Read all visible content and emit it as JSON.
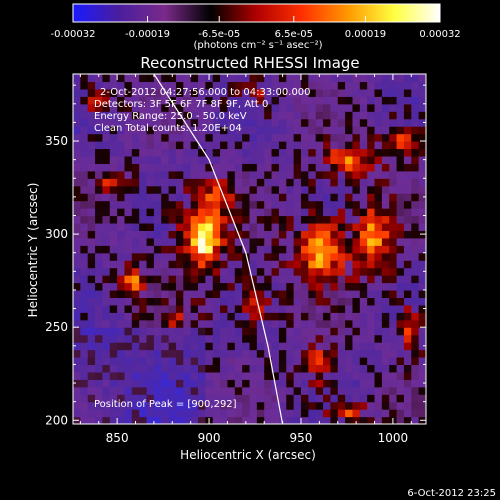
{
  "chart_data": {
    "type": "heatmap",
    "title": "Reconstructed RHESSI Image",
    "xlabel": "Heliocentric X (arcsec)",
    "ylabel": "Heliocentric Y (arcsec)",
    "xlim": [
      826,
      1018
    ],
    "ylim": [
      198,
      386
    ],
    "x_ticks": [
      850,
      900,
      950,
      1000
    ],
    "y_ticks": [
      200,
      250,
      300,
      350
    ],
    "colorbar": {
      "label": "(photons cm⁻² s⁻¹ asec⁻²)",
      "ticks": [
        "-0.00032",
        "-0.00019",
        "-6.5e-05",
        "6.5e-05",
        "0.00019",
        "0.00032"
      ],
      "range": [
        -0.00032,
        0.00032
      ],
      "colors": [
        "#1a1aff",
        "#4a1e9e",
        "#7a2a8a",
        "#000000",
        "#b00000",
        "#ff3000",
        "#ff9900",
        "#ffff40",
        "#ffffff"
      ]
    },
    "annotations": [
      "2-Oct-2012 04:27:56.000 to 04:33:00.000",
      "Detectors: 3F 5F 6F 7F 8F 9F, Att 0",
      "Energy Range: 25.0 - 50.0 keV",
      "Clean    Total counts: 1.20E+04"
    ],
    "peak_label": "Position of Peak = [900,292]",
    "peak_position": [
      900,
      292
    ],
    "limb_curve": [
      [
        870,
        386
      ],
      [
        900,
        340
      ],
      [
        920,
        290
      ],
      [
        932,
        240
      ],
      [
        940,
        198
      ]
    ],
    "blobs": [
      {
        "x": 897,
        "y": 298,
        "sx": 14,
        "sy": 22,
        "amp": 1.0
      },
      {
        "x": 905,
        "y": 320,
        "sx": 10,
        "sy": 10,
        "amp": 0.55
      },
      {
        "x": 858,
        "y": 275,
        "sx": 9,
        "sy": 9,
        "amp": 0.75
      },
      {
        "x": 848,
        "y": 328,
        "sx": 9,
        "sy": 8,
        "amp": 0.6
      },
      {
        "x": 960,
        "y": 290,
        "sx": 18,
        "sy": 22,
        "amp": 0.75
      },
      {
        "x": 990,
        "y": 300,
        "sx": 14,
        "sy": 20,
        "amp": 0.7
      },
      {
        "x": 975,
        "y": 340,
        "sx": 18,
        "sy": 10,
        "amp": 0.65
      },
      {
        "x": 960,
        "y": 230,
        "sx": 10,
        "sy": 14,
        "amp": 0.55
      },
      {
        "x": 975,
        "y": 205,
        "sx": 14,
        "sy": 6,
        "amp": 0.55
      },
      {
        "x": 1010,
        "y": 250,
        "sx": 8,
        "sy": 16,
        "amp": 0.55
      },
      {
        "x": 880,
        "y": 255,
        "sx": 12,
        "sy": 8,
        "amp": 0.45
      },
      {
        "x": 925,
        "y": 262,
        "sx": 10,
        "sy": 10,
        "amp": 0.5
      },
      {
        "x": 840,
        "y": 372,
        "sx": 10,
        "sy": 8,
        "amp": 0.5
      },
      {
        "x": 1005,
        "y": 350,
        "sx": 10,
        "sy": 10,
        "amp": 0.5
      },
      {
        "x": 925,
        "y": 375,
        "sx": 12,
        "sy": 8,
        "amp": 0.35
      }
    ]
  },
  "footer": {
    "timestamp": "6-Oct-2012 23:25"
  }
}
